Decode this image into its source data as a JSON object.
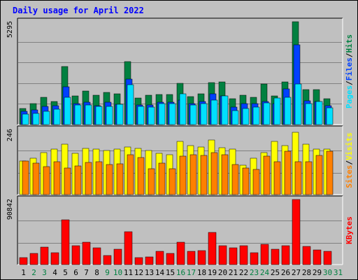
{
  "chart_data": {
    "title": "Daily usage for April 2022",
    "days": [
      "1",
      "2",
      "3",
      "4",
      "5",
      "6",
      "7",
      "8",
      "9",
      "10",
      "11",
      "12",
      "13",
      "14",
      "15",
      "16",
      "17",
      "18",
      "19",
      "20",
      "21",
      "22",
      "23",
      "24",
      "25",
      "26",
      "27",
      "28",
      "29",
      "30",
      "31"
    ],
    "weekend_days": [
      2,
      3,
      9,
      10,
      16,
      17,
      23,
      24,
      30,
      31
    ],
    "panels": [
      {
        "type": "bar",
        "y_tick_label": "5295",
        "y_max": 5295,
        "legend": [
          {
            "text": "Pages",
            "color": "#00e0ff"
          },
          {
            "text": "Files",
            "color": "#0040ff"
          },
          {
            "text": "Hits",
            "color": "#008040"
          }
        ],
        "series": [
          {
            "name": "Hits",
            "color": "#008040",
            "values": [
              840,
              1060,
              1410,
              1190,
              2960,
              1450,
              1700,
              1510,
              1640,
              1580,
              3230,
              1370,
              1500,
              1530,
              1530,
              2120,
              1420,
              1580,
              2160,
              2190,
              1310,
              1520,
              1400,
              2090,
              1460,
              2200,
              5250,
              1800,
              1800,
              1340,
              null
            ]
          },
          {
            "name": "Files",
            "color": "#0040ff",
            "values": [
              670,
              740,
              940,
              950,
              1920,
              1090,
              1130,
              970,
              1140,
              1050,
              2330,
              990,
              1010,
              1140,
              1160,
              1240,
              1070,
              1180,
              1570,
              1450,
              880,
              1090,
              1070,
              1180,
              1070,
              1810,
              4070,
              1220,
              1190,
              960,
              null
            ]
          },
          {
            "name": "Pages",
            "color": "#00e0ff",
            "values": [
              530,
              560,
              690,
              770,
              1400,
              1010,
              1000,
              920,
              920,
              1030,
              2050,
              920,
              900,
              1090,
              1070,
              1570,
              990,
              1080,
              1270,
              1480,
              720,
              830,
              880,
              1120,
              1370,
              1400,
              2060,
              1090,
              1170,
              860,
              null
            ]
          }
        ]
      },
      {
        "type": "bar",
        "y_tick_label": "246",
        "y_max": 246,
        "legend": [
          {
            "text": "Sites",
            "color": "#ff8000"
          },
          {
            "text": "Visits",
            "color": "#ffff00"
          }
        ],
        "series": [
          {
            "name": "Visits",
            "color": "#ffff00",
            "values": [
              125,
              136,
              157,
              171,
              188,
              155,
              172,
              170,
              165,
              169,
              177,
              174,
              165,
              155,
              148,
              199,
              183,
              178,
              203,
              175,
              171,
              110,
              135,
              157,
              199,
              184,
              234,
              188,
              171,
              170,
              null
            ]
          },
          {
            "name": "Sites",
            "color": "#ff8000",
            "values": [
              125,
              117,
              105,
              122,
              100,
              108,
              121,
              123,
              112,
              114,
              150,
              138,
              98,
              117,
              97,
              145,
              150,
              147,
              158,
              150,
              112,
              100,
              94,
              145,
              124,
              162,
              122,
              124,
              146,
              162,
              null
            ]
          }
        ]
      },
      {
        "type": "bar",
        "y_tick_label": "90842",
        "y_max": 90842,
        "legend": [
          {
            "text": "KBytes",
            "color": "#ff0000"
          }
        ],
        "series": [
          {
            "name": "KBytes",
            "color": "#ff0000",
            "values": [
              10000,
              15000,
              24000,
              16000,
              62000,
              26000,
              31000,
              23000,
              13000,
              21000,
              45000,
              10000,
              11000,
              18000,
              15000,
              31000,
              18000,
              19000,
              44000,
              26000,
              23000,
              26000,
              16000,
              28000,
              21000,
              26000,
              90000,
              25000,
              20000,
              18000,
              null
            ]
          }
        ]
      }
    ]
  }
}
